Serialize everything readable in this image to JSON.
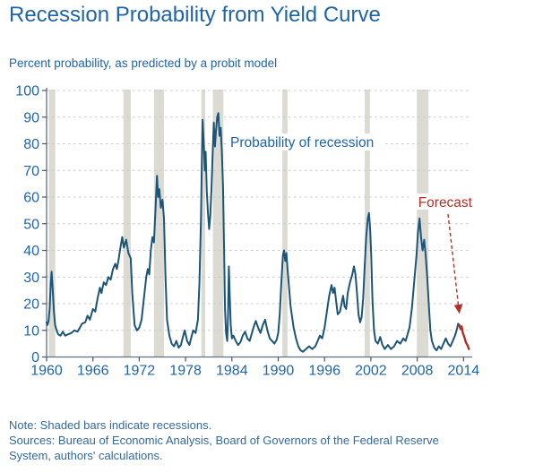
{
  "header": {
    "title": "Recession Probability from Yield Curve",
    "subtitle": "Percent probability, as predicted by a probit model"
  },
  "notes": {
    "note": "Note: Shaded bars indicate recessions.",
    "sources": "Sources: Bureau of Economic Analysis, Board of Governors of the Federal Reserve System, authors' calculations."
  },
  "chart_data": {
    "type": "line",
    "title": "Recession Probability from Yield Curve",
    "subtitle": "Percent probability, as predicted by a probit model",
    "xlabel": "",
    "ylabel": "Percent probability",
    "xlim": [
      1960,
      2015.1
    ],
    "ylim": [
      0,
      100
    ],
    "x_ticks": [
      1960,
      1966,
      1972,
      1978,
      1984,
      1990,
      1996,
      2002,
      2008,
      2014
    ],
    "y_ticks": [
      0,
      10,
      20,
      30,
      40,
      50,
      60,
      70,
      80,
      90,
      100
    ],
    "grid": "horizontal-dashed",
    "legend_position": "none",
    "annotations": {
      "series_label": "Probability of recession",
      "forecast_label": "Forecast"
    },
    "colors": {
      "line": "#1d5578",
      "forecast": "#b03028",
      "recession_band": "#dbdbd3",
      "grid": "#c9c9c9",
      "axis": "#62707c",
      "tick": "#4a5560",
      "text_blue": "#1f64a7"
    },
    "recession_bands": [
      [
        1960.29,
        1961.12
      ],
      [
        1969.95,
        1970.9
      ],
      [
        1973.9,
        1975.2
      ],
      [
        1980.04,
        1980.54
      ],
      [
        1981.54,
        1982.9
      ],
      [
        1990.54,
        1991.2
      ],
      [
        2001.2,
        2001.87
      ],
      [
        2007.95,
        2009.45
      ]
    ],
    "series": [
      {
        "name": "Probability of recession",
        "color": "#1d5578",
        "points": [
          [
            1960.0,
            13
          ],
          [
            1960.1,
            12
          ],
          [
            1960.25,
            13.5
          ],
          [
            1960.4,
            18
          ],
          [
            1960.55,
            28
          ],
          [
            1960.65,
            32
          ],
          [
            1960.8,
            25
          ],
          [
            1960.95,
            17
          ],
          [
            1961.1,
            12
          ],
          [
            1961.3,
            10
          ],
          [
            1961.5,
            8.5
          ],
          [
            1961.8,
            8
          ],
          [
            1962.1,
            9.5
          ],
          [
            1962.4,
            8
          ],
          [
            1962.8,
            8.5
          ],
          [
            1963.2,
            9
          ],
          [
            1963.6,
            10
          ],
          [
            1964.0,
            9.5
          ],
          [
            1964.3,
            11
          ],
          [
            1964.6,
            12.5
          ],
          [
            1965.0,
            13
          ],
          [
            1965.3,
            15.5
          ],
          [
            1965.6,
            14
          ],
          [
            1966.0,
            18
          ],
          [
            1966.3,
            17
          ],
          [
            1966.6,
            22
          ],
          [
            1966.9,
            26
          ],
          [
            1967.1,
            24
          ],
          [
            1967.4,
            28
          ],
          [
            1967.7,
            27
          ],
          [
            1968.0,
            30
          ],
          [
            1968.3,
            29
          ],
          [
            1968.6,
            33
          ],
          [
            1968.9,
            35
          ],
          [
            1969.1,
            33
          ],
          [
            1969.3,
            36
          ],
          [
            1969.5,
            40
          ],
          [
            1969.8,
            45
          ],
          [
            1970.0,
            41
          ],
          [
            1970.3,
            44
          ],
          [
            1970.6,
            39
          ],
          [
            1970.9,
            37
          ],
          [
            1971.1,
            24
          ],
          [
            1971.4,
            12
          ],
          [
            1971.7,
            10
          ],
          [
            1972.0,
            11
          ],
          [
            1972.3,
            14
          ],
          [
            1972.6,
            22
          ],
          [
            1972.9,
            30
          ],
          [
            1973.1,
            33
          ],
          [
            1973.3,
            31
          ],
          [
            1973.5,
            40
          ],
          [
            1973.7,
            45
          ],
          [
            1973.9,
            43
          ],
          [
            1974.1,
            55
          ],
          [
            1974.3,
            68
          ],
          [
            1974.45,
            60
          ],
          [
            1974.6,
            63
          ],
          [
            1974.8,
            56
          ],
          [
            1975.0,
            59
          ],
          [
            1975.2,
            52
          ],
          [
            1975.4,
            30
          ],
          [
            1975.6,
            14
          ],
          [
            1975.9,
            8
          ],
          [
            1976.2,
            5
          ],
          [
            1976.5,
            4
          ],
          [
            1976.8,
            6
          ],
          [
            1977.1,
            3.5
          ],
          [
            1977.4,
            4.5
          ],
          [
            1977.7,
            8
          ],
          [
            1977.9,
            10
          ],
          [
            1978.2,
            6
          ],
          [
            1978.5,
            4.5
          ],
          [
            1978.8,
            8
          ],
          [
            1979.0,
            10
          ],
          [
            1979.3,
            9
          ],
          [
            1979.6,
            14
          ],
          [
            1979.8,
            28
          ],
          [
            1980.0,
            52
          ],
          [
            1980.1,
            72
          ],
          [
            1980.2,
            89
          ],
          [
            1980.35,
            80
          ],
          [
            1980.5,
            70
          ],
          [
            1980.6,
            77
          ],
          [
            1980.75,
            62
          ],
          [
            1980.9,
            54
          ],
          [
            1981.05,
            48
          ],
          [
            1981.2,
            53
          ],
          [
            1981.35,
            63
          ],
          [
            1981.5,
            76
          ],
          [
            1981.65,
            88
          ],
          [
            1981.8,
            79
          ],
          [
            1981.95,
            85
          ],
          [
            1982.1,
            90
          ],
          [
            1982.25,
            91.5
          ],
          [
            1982.4,
            83
          ],
          [
            1982.55,
            86
          ],
          [
            1982.7,
            77
          ],
          [
            1982.85,
            64
          ],
          [
            1983.0,
            38
          ],
          [
            1983.1,
            18
          ],
          [
            1983.25,
            9
          ],
          [
            1983.4,
            6
          ],
          [
            1983.5,
            16
          ],
          [
            1983.6,
            34
          ],
          [
            1983.7,
            25
          ],
          [
            1983.85,
            12
          ],
          [
            1984.0,
            7
          ],
          [
            1984.2,
            8
          ],
          [
            1984.5,
            6
          ],
          [
            1984.8,
            4.5
          ],
          [
            1985.1,
            5.5
          ],
          [
            1985.4,
            8
          ],
          [
            1985.7,
            9.5
          ],
          [
            1986.0,
            7
          ],
          [
            1986.3,
            6
          ],
          [
            1986.6,
            9
          ],
          [
            1986.9,
            12
          ],
          [
            1987.1,
            13.5
          ],
          [
            1987.4,
            11
          ],
          [
            1987.7,
            9
          ],
          [
            1988.0,
            12
          ],
          [
            1988.3,
            14
          ],
          [
            1988.6,
            10
          ],
          [
            1988.9,
            7
          ],
          [
            1989.2,
            6
          ],
          [
            1989.5,
            5
          ],
          [
            1989.8,
            6.5
          ],
          [
            1990.0,
            9
          ],
          [
            1990.2,
            16
          ],
          [
            1990.4,
            28
          ],
          [
            1990.6,
            38
          ],
          [
            1990.75,
            40
          ],
          [
            1990.9,
            36
          ],
          [
            1991.05,
            39
          ],
          [
            1991.2,
            33
          ],
          [
            1991.4,
            26
          ],
          [
            1991.6,
            19
          ],
          [
            1991.8,
            15
          ],
          [
            1992.0,
            11
          ],
          [
            1992.3,
            7
          ],
          [
            1992.6,
            4
          ],
          [
            1992.9,
            2.5
          ],
          [
            1993.2,
            2
          ],
          [
            1993.6,
            3
          ],
          [
            1994.0,
            4
          ],
          [
            1994.4,
            3
          ],
          [
            1994.8,
            4
          ],
          [
            1995.1,
            6
          ],
          [
            1995.4,
            8
          ],
          [
            1995.7,
            7
          ],
          [
            1996.0,
            11
          ],
          [
            1996.3,
            17
          ],
          [
            1996.6,
            23
          ],
          [
            1996.9,
            27
          ],
          [
            1997.1,
            24
          ],
          [
            1997.3,
            26
          ],
          [
            1997.5,
            21
          ],
          [
            1997.7,
            16
          ],
          [
            1998.0,
            17
          ],
          [
            1998.2,
            20
          ],
          [
            1998.4,
            23
          ],
          [
            1998.6,
            19
          ],
          [
            1998.8,
            18
          ],
          [
            1999.0,
            24
          ],
          [
            1999.3,
            28
          ],
          [
            1999.6,
            31
          ],
          [
            1999.8,
            34
          ],
          [
            2000.0,
            31
          ],
          [
            2000.2,
            24
          ],
          [
            2000.4,
            16
          ],
          [
            2000.6,
            13
          ],
          [
            2000.8,
            15
          ],
          [
            2001.0,
            22
          ],
          [
            2001.2,
            34
          ],
          [
            2001.4,
            45
          ],
          [
            2001.6,
            52
          ],
          [
            2001.75,
            54
          ],
          [
            2001.9,
            48
          ],
          [
            2002.05,
            38
          ],
          [
            2002.2,
            22
          ],
          [
            2002.4,
            10
          ],
          [
            2002.6,
            6
          ],
          [
            2002.9,
            5
          ],
          [
            2003.2,
            7.5
          ],
          [
            2003.5,
            4.5
          ],
          [
            2003.8,
            3
          ],
          [
            2004.2,
            4.5
          ],
          [
            2004.6,
            3
          ],
          [
            2005.0,
            4
          ],
          [
            2005.4,
            6
          ],
          [
            2005.8,
            5
          ],
          [
            2006.2,
            7
          ],
          [
            2006.5,
            6
          ],
          [
            2006.8,
            9
          ],
          [
            2007.0,
            11
          ],
          [
            2007.3,
            18
          ],
          [
            2007.6,
            28
          ],
          [
            2007.9,
            38
          ],
          [
            2008.1,
            47
          ],
          [
            2008.3,
            52
          ],
          [
            2008.5,
            45
          ],
          [
            2008.7,
            40
          ],
          [
            2008.9,
            44
          ],
          [
            2009.1,
            38
          ],
          [
            2009.3,
            30
          ],
          [
            2009.5,
            20
          ],
          [
            2009.7,
            10
          ],
          [
            2009.9,
            6
          ],
          [
            2010.2,
            3.5
          ],
          [
            2010.5,
            2.5
          ],
          [
            2010.8,
            4
          ],
          [
            2011.1,
            3
          ],
          [
            2011.4,
            5
          ],
          [
            2011.7,
            7
          ],
          [
            2012.0,
            5
          ],
          [
            2012.3,
            4
          ],
          [
            2012.6,
            6
          ],
          [
            2012.9,
            8
          ],
          [
            2013.1,
            10
          ],
          [
            2013.3,
            12.5
          ],
          [
            2013.45,
            12
          ]
        ]
      },
      {
        "name": "Forecast",
        "color": "#b03028",
        "points": [
          [
            2013.45,
            12
          ],
          [
            2013.6,
            10.5
          ],
          [
            2013.75,
            11.5
          ],
          [
            2013.9,
            9
          ],
          [
            2014.1,
            7.5
          ],
          [
            2014.3,
            5.5
          ],
          [
            2014.5,
            4.5
          ],
          [
            2014.7,
            3
          ]
        ]
      }
    ]
  }
}
